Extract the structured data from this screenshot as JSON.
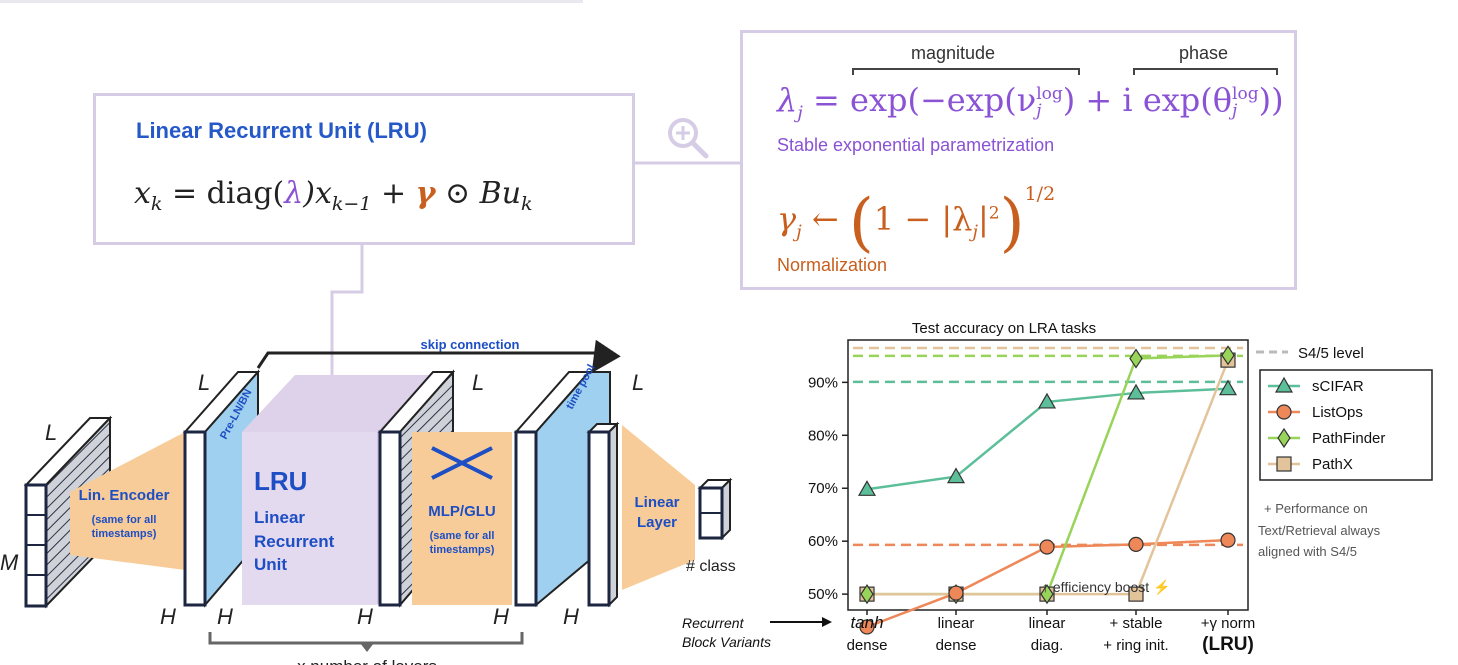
{
  "lru_box": {
    "title": "Linear Recurrent Unit (LRU)",
    "eq_lhs": "x",
    "eq_lhs_sub": "k",
    "eq_eq": " = ",
    "eq_diag": "diag(",
    "eq_lambda": "λ",
    "eq_close_x": ")x",
    "eq_sub_km1": "k−1",
    "eq_plus": " + ",
    "eq_gamma": "γ",
    "eq_odot": " ⊙ Bu",
    "eq_sub_k": "k"
  },
  "param_box": {
    "magnitude_label": "magnitude",
    "phase_label": "phase",
    "lambda_eq": "λⱼ = exp(−exp(νⱼ^log) + i exp(θⱼ^log))",
    "lambda_sym": "λ",
    "lambda_sub": "j",
    "lambda_rest1": " = exp(−exp(ν",
    "nu_sup": "log",
    "nu_sub": "j",
    "lambda_rest2": ") + i exp(θ",
    "theta_sup": "log",
    "theta_sub": "j",
    "lambda_rest3": "))",
    "stable_caption": "Stable exponential parametrization",
    "gamma_sym": "γ",
    "gamma_sub": "j",
    "gamma_rest": " ← ",
    "gamma_inner": "1 − |λ",
    "gamma_inner_sub": "j",
    "gamma_inner_end": "|",
    "gamma_sq": "2",
    "gamma_pow": "1/2",
    "norm_caption": "Normalization"
  },
  "architecture": {
    "skip_label": "skip connection",
    "dims": {
      "L": "L",
      "M": "M",
      "H": "H"
    },
    "encoder_title": "Lin. Encoder",
    "encoder_sub1": "(same for all",
    "encoder_sub2": "timestamps)",
    "preln_label": "Pre-LN/BN",
    "lru_big": "LRU",
    "lru_line1": "Linear",
    "lru_line2": "Recurrent",
    "lru_line3": "Unit",
    "mlp_title": "MLP/GLU",
    "mlp_sub1": "(same for all",
    "mlp_sub2": "timestamps)",
    "timepool_label": "time pool",
    "linear_line1": "Linear",
    "linear_line2": "Layer",
    "class_label": "# class",
    "layers_label": "x number of layers"
  },
  "chart_data": {
    "type": "line",
    "title": "Test accuracy on LRA tasks",
    "categories": [
      "tanh dense",
      "linear dense",
      "linear diag.",
      "+ stable + ring init.",
      "+γ norm (LRU)"
    ],
    "category_lines": [
      [
        "tanh",
        "dense"
      ],
      [
        "linear",
        "dense"
      ],
      [
        "linear",
        "diag."
      ],
      [
        "+ stable",
        "+ ring init."
      ],
      [
        "+γ norm",
        "(LRU)"
      ]
    ],
    "yticks": [
      "50%",
      "60%",
      "70%",
      "80%",
      "90%"
    ],
    "ylim": [
      47,
      98
    ],
    "grid": false,
    "legend_position": "right",
    "series": [
      {
        "name": "sCIFAR",
        "color": "#5dbf9a",
        "marker": "triangle",
        "values": [
          69.8,
          72.2,
          86.3,
          88.0,
          88.8
        ],
        "s45_level": 90.1
      },
      {
        "name": "ListOps",
        "color": "#ee8858",
        "marker": "circle",
        "values": [
          43.8,
          50.2,
          58.9,
          59.4,
          60.2
        ],
        "s45_level": 59.3
      },
      {
        "name": "PathFinder",
        "color": "#98d45a",
        "marker": "diamond",
        "values": [
          50.0,
          50.0,
          50.0,
          94.5,
          95.1
        ],
        "s45_level": 95.0
      },
      {
        "name": "PathX",
        "color": "#e3c49a",
        "marker": "square",
        "values": [
          50.0,
          50.0,
          50.0,
          50.0,
          94.2
        ],
        "s45_level": 96.5
      }
    ],
    "s45_level_label": "S4/5 level",
    "annotation": "↑ efficiency boost ⚡",
    "x_axis_caption_line1": "Recurrent",
    "x_axis_caption_line2": "Block Variants",
    "side_note": [
      "+ Performance on",
      "Text/Retrieval always",
      "aligned with S4/5"
    ]
  }
}
